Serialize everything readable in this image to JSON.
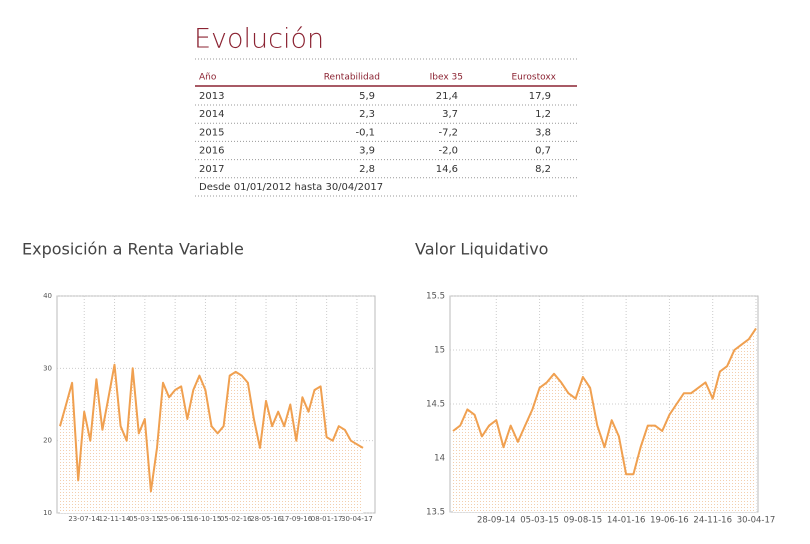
{
  "table": {
    "title": "Evolución",
    "headers": [
      "Año",
      "Rentabilidad",
      "Ibex 35",
      "Eurostoxx"
    ],
    "rows": [
      [
        "2013",
        "5,9",
        "21,4",
        "17,9"
      ],
      [
        "2014",
        "2,3",
        "3,7",
        "1,2"
      ],
      [
        "2015",
        "-0,1",
        "-7,2",
        "3,8"
      ],
      [
        "2016",
        "3,9",
        "-2,0",
        "0,7"
      ],
      [
        "2017",
        "2,8",
        "14,6",
        "8,2"
      ]
    ],
    "note": "Desde 01/01/2012 hasta 30/04/2017"
  },
  "chart_data": [
    {
      "type": "line",
      "title": "Exposición a Renta Variable",
      "categories": [
        null,
        null,
        null,
        null,
        "23-07-14",
        null,
        null,
        null,
        null,
        "12-11-14",
        null,
        null,
        null,
        null,
        "05-03-15",
        null,
        null,
        null,
        null,
        "25-06-15",
        null,
        null,
        null,
        null,
        "16-10-15",
        null,
        null,
        null,
        null,
        "05-02-16",
        null,
        null,
        null,
        null,
        "28-05-16",
        null,
        null,
        null,
        null,
        "17-09-16",
        null,
        null,
        null,
        null,
        "08-01-17",
        null,
        null,
        null,
        null,
        "30-04-17",
        null
      ],
      "series": [
        {
          "color": "#f0a050",
          "values": [
            22,
            25,
            28,
            14.5,
            24,
            20,
            28.5,
            21.5,
            26,
            30.5,
            22,
            20,
            30,
            21,
            23,
            13,
            19,
            28,
            26,
            27,
            27.5,
            23,
            27,
            29,
            27,
            22,
            21,
            22,
            29,
            29.5,
            29,
            28,
            23,
            19,
            25.5,
            22,
            24,
            22,
            25,
            20,
            26,
            24,
            27,
            27.5,
            20.5,
            20,
            22,
            21.5,
            20,
            19.5,
            19
          ]
        }
      ],
      "ylim": [
        10,
        40
      ],
      "yticks": [
        10,
        20,
        30,
        40
      ],
      "grid": true
    },
    {
      "type": "line",
      "title": "Valor Liquidativo",
      "categories": [
        null,
        null,
        null,
        null,
        null,
        null,
        "28-09-14",
        null,
        null,
        null,
        null,
        null,
        "05-03-15",
        null,
        null,
        null,
        null,
        null,
        "09-08-15",
        null,
        null,
        null,
        null,
        null,
        "14-01-16",
        null,
        null,
        null,
        null,
        null,
        "19-06-16",
        null,
        null,
        null,
        null,
        null,
        "24-11-16",
        null,
        null,
        null,
        null,
        null,
        "30-04-17"
      ],
      "series": [
        {
          "color": "#f0a050",
          "values": [
            14.25,
            14.3,
            14.45,
            14.4,
            14.2,
            14.3,
            14.35,
            14.1,
            14.3,
            14.15,
            14.3,
            14.45,
            14.65,
            14.7,
            14.78,
            14.7,
            14.6,
            14.55,
            14.75,
            14.65,
            14.3,
            14.1,
            14.35,
            14.2,
            13.85,
            13.85,
            14.1,
            14.3,
            14.3,
            14.25,
            14.4,
            14.5,
            14.6,
            14.6,
            14.65,
            14.7,
            14.55,
            14.8,
            14.85,
            15.0,
            15.05,
            15.1,
            15.2
          ]
        }
      ],
      "ylim": [
        13.5,
        15.5
      ],
      "yticks": [
        13.5,
        14,
        14.5,
        15,
        15.5
      ],
      "grid": true
    }
  ]
}
